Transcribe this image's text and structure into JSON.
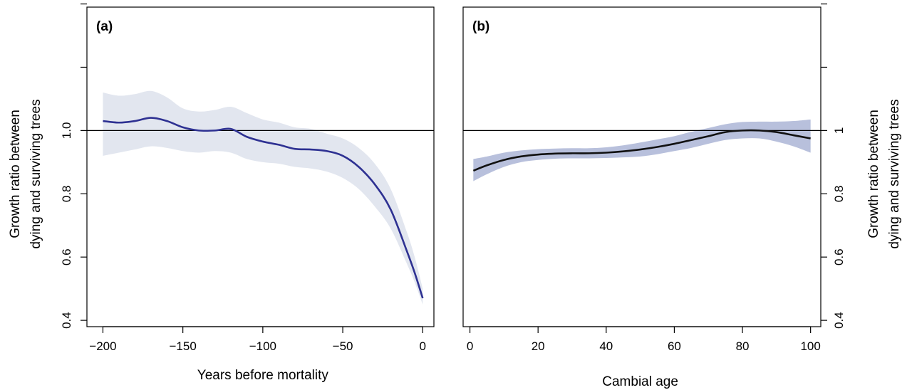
{
  "chart_data": [
    {
      "type": "line",
      "panel_label": "(a)",
      "xlabel": "Years before mortality",
      "ylabel_lines": [
        "Growth ratio between",
        "dying and surviving trees"
      ],
      "xlim": [
        -210,
        7
      ],
      "ylim": [
        0.38,
        1.39
      ],
      "xticks": [
        -200,
        -150,
        -100,
        -50,
        0
      ],
      "xtick_labels": [
        "−200",
        "−150",
        "−100",
        "−50",
        "0"
      ],
      "yticks": [
        0.4,
        0.6,
        0.8,
        1.0,
        1.2,
        1.4
      ],
      "ytick_labels": [
        "0.4",
        "0.6",
        "0.8",
        "1.0",
        "",
        ""
      ],
      "reference_line": 1.0,
      "line_color": "#2e3192",
      "band_color": "#e2e6ef",
      "series": [
        {
          "x": [
            -200,
            -190,
            -180,
            -170,
            -160,
            -150,
            -140,
            -130,
            -120,
            -110,
            -100,
            -90,
            -80,
            -70,
            -60,
            -50,
            -40,
            -30,
            -20,
            -10,
            -5,
            0
          ],
          "y": [
            1.03,
            1.025,
            1.03,
            1.04,
            1.03,
            1.01,
            1.0,
            1.0,
            1.005,
            0.98,
            0.965,
            0.955,
            0.942,
            0.94,
            0.935,
            0.92,
            0.885,
            0.83,
            0.75,
            0.62,
            0.55,
            0.47
          ],
          "lower": [
            0.92,
            0.93,
            0.94,
            0.95,
            0.945,
            0.935,
            0.93,
            0.935,
            0.93,
            0.91,
            0.9,
            0.895,
            0.885,
            0.88,
            0.87,
            0.85,
            0.815,
            0.76,
            0.69,
            0.58,
            0.52,
            0.45
          ],
          "upper": [
            1.12,
            1.11,
            1.115,
            1.125,
            1.105,
            1.07,
            1.06,
            1.065,
            1.075,
            1.055,
            1.035,
            1.025,
            1.01,
            1.005,
            0.99,
            0.975,
            0.945,
            0.895,
            0.815,
            0.68,
            0.6,
            0.5
          ]
        }
      ]
    },
    {
      "type": "line",
      "panel_label": "(b)",
      "xlabel": "Cambial age",
      "ylabel_lines": [
        "Growth ratio between",
        "dying and surviving trees"
      ],
      "xlim": [
        -2,
        103
      ],
      "ylim": [
        0.38,
        1.39
      ],
      "xticks": [
        0,
        20,
        40,
        60,
        80,
        100
      ],
      "xtick_labels": [
        "0",
        "20",
        "40",
        "60",
        "80",
        "100"
      ],
      "yticks": [
        0.4,
        0.6,
        0.8,
        1.0,
        1.2,
        1.4
      ],
      "ytick_labels": [
        "0.4",
        "0.6",
        "0.8",
        "1",
        "",
        ""
      ],
      "reference_line": 1.0,
      "line_color": "#111111",
      "band_color": "#b8c0dc",
      "series": [
        {
          "x": [
            1,
            5,
            10,
            15,
            20,
            25,
            30,
            35,
            40,
            45,
            50,
            55,
            60,
            65,
            70,
            75,
            80,
            85,
            90,
            95,
            100
          ],
          "y": [
            0.873,
            0.89,
            0.907,
            0.918,
            0.924,
            0.927,
            0.928,
            0.928,
            0.93,
            0.934,
            0.94,
            0.948,
            0.958,
            0.97,
            0.982,
            0.995,
            1.0,
            1.0,
            0.995,
            0.985,
            0.975
          ],
          "lower": [
            0.84,
            0.862,
            0.885,
            0.9,
            0.907,
            0.911,
            0.912,
            0.912,
            0.913,
            0.915,
            0.918,
            0.925,
            0.935,
            0.945,
            0.958,
            0.97,
            0.975,
            0.975,
            0.965,
            0.95,
            0.93
          ],
          "upper": [
            0.91,
            0.918,
            0.93,
            0.937,
            0.941,
            0.943,
            0.944,
            0.944,
            0.947,
            0.953,
            0.962,
            0.972,
            0.982,
            0.996,
            1.008,
            1.02,
            1.027,
            1.028,
            1.028,
            1.03,
            1.035
          ]
        }
      ]
    }
  ]
}
